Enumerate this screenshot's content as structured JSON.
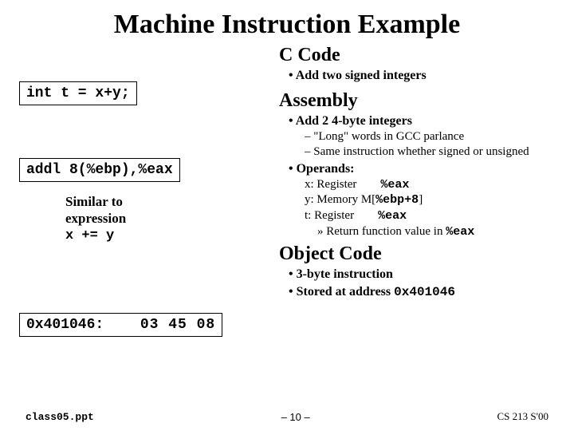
{
  "title": "Machine Instruction Example",
  "left": {
    "code_box_1": "int t = x+y;",
    "code_box_2": "addl 8(%ebp),%eax",
    "similar_line1": "Similar to",
    "similar_line2": "expression",
    "similar_line3": "x += y",
    "obj_addr": "0x401046:",
    "obj_bytes": "03 45 08"
  },
  "ccode": {
    "heading": "C Code",
    "b1": "• Add two signed integers"
  },
  "asm": {
    "heading": "Assembly",
    "b1": "• Add 2 4-byte integers",
    "b2a": "– \"Long\" words in GCC parlance",
    "b2b": "– Same instruction whether signed or unsigned",
    "b3": "• Operands:",
    "opx_pre": "x: Register",
    "opx_reg": "%eax",
    "opy_pre": "y: Memory M[",
    "opy_reg": "%ebp+8",
    "opy_suf": "]",
    "opt_pre": "t: Register",
    "opt_reg": "%eax",
    "ret_pre": "» Return function value in ",
    "ret_reg": "%eax"
  },
  "obj": {
    "heading": "Object Code",
    "b1": "• 3-byte instruction",
    "b2_pre": "• Stored at address ",
    "b2_addr": "0x401046"
  },
  "footer": {
    "left": "class05.ppt",
    "mid": "– 10 –",
    "right": "CS 213 S'00"
  },
  "colors": {
    "text": "#000000",
    "background": "#ffffff",
    "border": "#000000"
  }
}
